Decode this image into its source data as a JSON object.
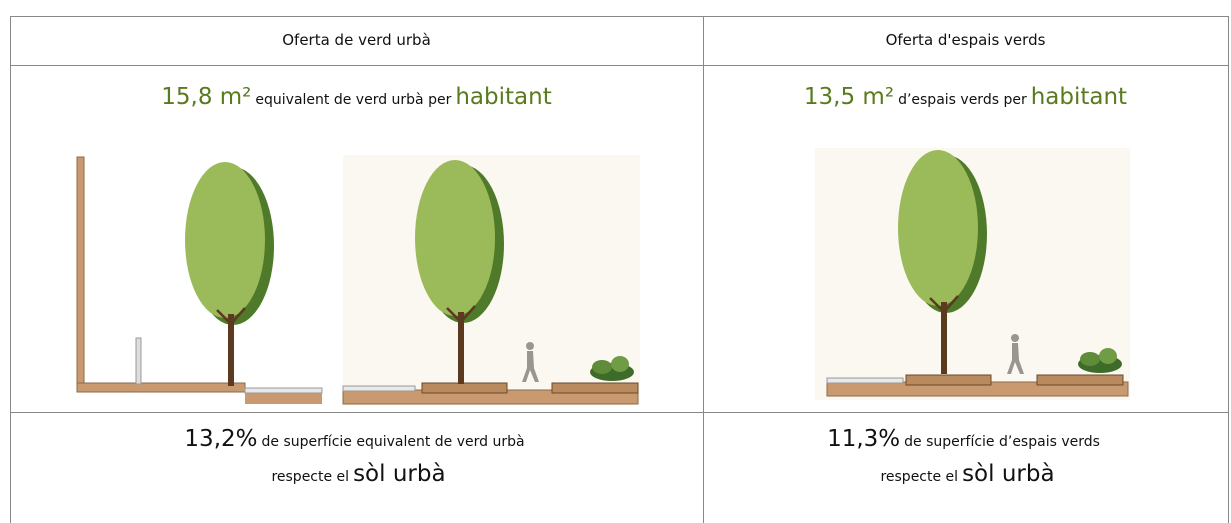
{
  "table": {
    "headers": [
      "Oferta de verd urbà",
      "Oferta d'espais verds"
    ],
    "rows": [
      [
        {
          "value": "15,8 m²",
          "text": "equivalent de verd urbà per",
          "unit": "habitant"
        },
        {
          "value": "13,5 m²",
          "text": "d’espais verds per",
          "unit": "habitant"
        }
      ],
      [
        {
          "value": "13,2%",
          "text": "de superfície equivalent de verd urbà",
          "line2": "respecte el",
          "emphasis": "sòl urbà"
        },
        {
          "value": "11,3%",
          "text": "de superfície d’espais verds",
          "line2": "respecte el",
          "emphasis": "sòl urbà"
        }
      ]
    ]
  }
}
